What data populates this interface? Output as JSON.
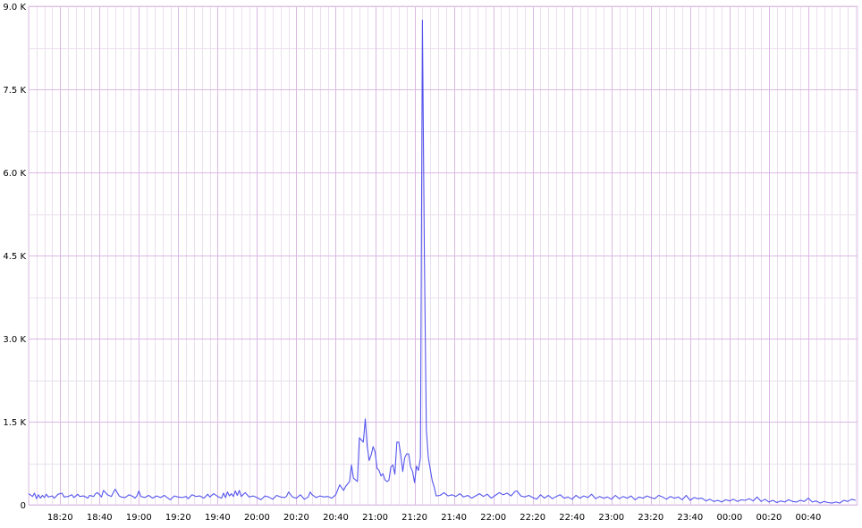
{
  "chart_data": {
    "type": "line",
    "title": "",
    "xlabel": "",
    "ylabel": "",
    "grid": true,
    "ylim": [
      0,
      9000
    ],
    "y_ticks": [
      {
        "value": 0,
        "label": "0"
      },
      {
        "value": 1500,
        "label": "1.5 K"
      },
      {
        "value": 3000,
        "label": "3.0 K"
      },
      {
        "value": 4500,
        "label": "4.5 K"
      },
      {
        "value": 6000,
        "label": "6.0 K"
      },
      {
        "value": 7500,
        "label": "7.5 K"
      },
      {
        "value": 9000,
        "label": "9.0 K"
      }
    ],
    "x_range_minutes": [
      1084,
      1505
    ],
    "x_ticks": [
      {
        "value": 1100,
        "label": "18:20"
      },
      {
        "value": 1120,
        "label": "18:40"
      },
      {
        "value": 1140,
        "label": "19:00"
      },
      {
        "value": 1160,
        "label": "19:20"
      },
      {
        "value": 1180,
        "label": "19:40"
      },
      {
        "value": 1200,
        "label": "20:00"
      },
      {
        "value": 1220,
        "label": "20:20"
      },
      {
        "value": 1240,
        "label": "20:40"
      },
      {
        "value": 1260,
        "label": "21:00"
      },
      {
        "value": 1280,
        "label": "21:20"
      },
      {
        "value": 1300,
        "label": "21:40"
      },
      {
        "value": 1320,
        "label": "22:00"
      },
      {
        "value": 1340,
        "label": "22:20"
      },
      {
        "value": 1360,
        "label": "22:40"
      },
      {
        "value": 1380,
        "label": "23:00"
      },
      {
        "value": 1400,
        "label": "23:20"
      },
      {
        "value": 1420,
        "label": "23:40"
      },
      {
        "value": 1440,
        "label": "00:00"
      },
      {
        "value": 1460,
        "label": "00:20"
      },
      {
        "value": 1480,
        "label": "00:40"
      }
    ],
    "series": [
      {
        "color": "#5555ee",
        "points": [
          [
            1084,
            200
          ],
          [
            1086,
            150
          ],
          [
            1087,
            210
          ],
          [
            1088,
            110
          ],
          [
            1089,
            180
          ],
          [
            1090,
            120
          ],
          [
            1091,
            170
          ],
          [
            1092,
            130
          ],
          [
            1093,
            190
          ],
          [
            1094,
            140
          ],
          [
            1096,
            160
          ],
          [
            1097,
            120
          ],
          [
            1099,
            190
          ],
          [
            1101,
            210
          ],
          [
            1102,
            140
          ],
          [
            1104,
            150
          ],
          [
            1106,
            180
          ],
          [
            1107,
            130
          ],
          [
            1109,
            190
          ],
          [
            1110,
            150
          ],
          [
            1112,
            160
          ],
          [
            1114,
            120
          ],
          [
            1115,
            170
          ],
          [
            1117,
            150
          ],
          [
            1118,
            200
          ],
          [
            1119,
            220
          ],
          [
            1121,
            140
          ],
          [
            1122,
            260
          ],
          [
            1124,
            180
          ],
          [
            1126,
            150
          ],
          [
            1127,
            220
          ],
          [
            1128,
            280
          ],
          [
            1130,
            160
          ],
          [
            1131,
            140
          ],
          [
            1133,
            130
          ],
          [
            1135,
            180
          ],
          [
            1137,
            150
          ],
          [
            1138,
            120
          ],
          [
            1139,
            160
          ],
          [
            1140,
            250
          ],
          [
            1141,
            150
          ],
          [
            1143,
            130
          ],
          [
            1145,
            170
          ],
          [
            1147,
            120
          ],
          [
            1149,
            160
          ],
          [
            1151,
            130
          ],
          [
            1153,
            170
          ],
          [
            1154,
            140
          ],
          [
            1156,
            90
          ],
          [
            1158,
            160
          ],
          [
            1160,
            140
          ],
          [
            1162,
            130
          ],
          [
            1164,
            150
          ],
          [
            1165,
            110
          ],
          [
            1167,
            180
          ],
          [
            1169,
            150
          ],
          [
            1171,
            160
          ],
          [
            1173,
            120
          ],
          [
            1175,
            190
          ],
          [
            1176,
            140
          ],
          [
            1178,
            200
          ],
          [
            1180,
            150
          ],
          [
            1182,
            120
          ],
          [
            1183,
            210
          ],
          [
            1184,
            130
          ],
          [
            1185,
            230
          ],
          [
            1186,
            160
          ],
          [
            1187,
            200
          ],
          [
            1188,
            150
          ],
          [
            1189,
            250
          ],
          [
            1190,
            170
          ],
          [
            1191,
            260
          ],
          [
            1192,
            150
          ],
          [
            1194,
            220
          ],
          [
            1196,
            140
          ],
          [
            1198,
            160
          ],
          [
            1200,
            130
          ],
          [
            1202,
            90
          ],
          [
            1204,
            160
          ],
          [
            1206,
            140
          ],
          [
            1208,
            100
          ],
          [
            1210,
            170
          ],
          [
            1212,
            140
          ],
          [
            1214,
            130
          ],
          [
            1215,
            150
          ],
          [
            1216,
            230
          ],
          [
            1218,
            140
          ],
          [
            1220,
            120
          ],
          [
            1222,
            180
          ],
          [
            1224,
            100
          ],
          [
            1226,
            140
          ],
          [
            1227,
            230
          ],
          [
            1228,
            180
          ],
          [
            1230,
            130
          ],
          [
            1232,
            160
          ],
          [
            1234,
            140
          ],
          [
            1236,
            150
          ],
          [
            1238,
            120
          ],
          [
            1240,
            180
          ],
          [
            1242,
            360
          ],
          [
            1244,
            260
          ],
          [
            1245,
            330
          ],
          [
            1247,
            420
          ],
          [
            1248,
            720
          ],
          [
            1249,
            480
          ],
          [
            1251,
            420
          ],
          [
            1252,
            1210
          ],
          [
            1254,
            1130
          ],
          [
            1255,
            1550
          ],
          [
            1256,
            1050
          ],
          [
            1257,
            800
          ],
          [
            1258,
            900
          ],
          [
            1259,
            1050
          ],
          [
            1260,
            950
          ],
          [
            1261,
            660
          ],
          [
            1262,
            620
          ],
          [
            1263,
            520
          ],
          [
            1264,
            560
          ],
          [
            1265,
            450
          ],
          [
            1266,
            420
          ],
          [
            1267,
            440
          ],
          [
            1268,
            680
          ],
          [
            1269,
            720
          ],
          [
            1270,
            550
          ],
          [
            1271,
            1130
          ],
          [
            1272,
            1130
          ],
          [
            1273,
            900
          ],
          [
            1274,
            600
          ],
          [
            1275,
            850
          ],
          [
            1276,
            920
          ],
          [
            1277,
            920
          ],
          [
            1278,
            680
          ],
          [
            1279,
            600
          ],
          [
            1280,
            400
          ],
          [
            1281,
            700
          ],
          [
            1282,
            620
          ],
          [
            1283,
            850
          ],
          [
            1284,
            8750
          ],
          [
            1285,
            4500
          ],
          [
            1286,
            1350
          ],
          [
            1287,
            850
          ],
          [
            1288,
            640
          ],
          [
            1289,
            430
          ],
          [
            1290,
            320
          ],
          [
            1291,
            160
          ],
          [
            1293,
            170
          ],
          [
            1295,
            220
          ],
          [
            1297,
            160
          ],
          [
            1299,
            180
          ],
          [
            1301,
            150
          ],
          [
            1303,
            200
          ],
          [
            1305,
            140
          ],
          [
            1307,
            170
          ],
          [
            1309,
            120
          ],
          [
            1311,
            160
          ],
          [
            1313,
            200
          ],
          [
            1315,
            150
          ],
          [
            1317,
            190
          ],
          [
            1319,
            120
          ],
          [
            1321,
            170
          ],
          [
            1323,
            220
          ],
          [
            1325,
            180
          ],
          [
            1327,
            210
          ],
          [
            1329,
            160
          ],
          [
            1331,
            240
          ],
          [
            1332,
            250
          ],
          [
            1334,
            160
          ],
          [
            1336,
            140
          ],
          [
            1338,
            170
          ],
          [
            1340,
            130
          ],
          [
            1342,
            100
          ],
          [
            1344,
            180
          ],
          [
            1346,
            120
          ],
          [
            1348,
            170
          ],
          [
            1350,
            110
          ],
          [
            1352,
            150
          ],
          [
            1354,
            180
          ],
          [
            1356,
            120
          ],
          [
            1358,
            140
          ],
          [
            1360,
            100
          ],
          [
            1362,
            170
          ],
          [
            1364,
            120
          ],
          [
            1366,
            160
          ],
          [
            1368,
            130
          ],
          [
            1370,
            190
          ],
          [
            1372,
            110
          ],
          [
            1374,
            150
          ],
          [
            1376,
            120
          ],
          [
            1378,
            140
          ],
          [
            1380,
            100
          ],
          [
            1382,
            170
          ],
          [
            1384,
            110
          ],
          [
            1386,
            150
          ],
          [
            1388,
            120
          ],
          [
            1390,
            160
          ],
          [
            1392,
            90
          ],
          [
            1394,
            140
          ],
          [
            1396,
            120
          ],
          [
            1398,
            160
          ],
          [
            1400,
            130
          ],
          [
            1402,
            110
          ],
          [
            1404,
            170
          ],
          [
            1406,
            140
          ],
          [
            1408,
            100
          ],
          [
            1410,
            150
          ],
          [
            1412,
            120
          ],
          [
            1414,
            140
          ],
          [
            1416,
            90
          ],
          [
            1418,
            170
          ],
          [
            1420,
            80
          ],
          [
            1422,
            130
          ],
          [
            1424,
            110
          ],
          [
            1426,
            120
          ],
          [
            1428,
            70
          ],
          [
            1430,
            100
          ],
          [
            1432,
            60
          ],
          [
            1434,
            80
          ],
          [
            1436,
            50
          ],
          [
            1438,
            90
          ],
          [
            1440,
            70
          ],
          [
            1442,
            100
          ],
          [
            1444,
            60
          ],
          [
            1446,
            90
          ],
          [
            1448,
            80
          ],
          [
            1450,
            110
          ],
          [
            1452,
            70
          ],
          [
            1454,
            140
          ],
          [
            1456,
            60
          ],
          [
            1458,
            100
          ],
          [
            1460,
            50
          ],
          [
            1462,
            80
          ],
          [
            1464,
            40
          ],
          [
            1466,
            70
          ],
          [
            1468,
            50
          ],
          [
            1470,
            90
          ],
          [
            1472,
            60
          ],
          [
            1474,
            50
          ],
          [
            1476,
            80
          ],
          [
            1478,
            60
          ],
          [
            1480,
            120
          ],
          [
            1482,
            50
          ],
          [
            1484,
            70
          ],
          [
            1486,
            30
          ],
          [
            1488,
            60
          ],
          [
            1490,
            40
          ],
          [
            1492,
            30
          ],
          [
            1494,
            50
          ],
          [
            1496,
            30
          ],
          [
            1498,
            80
          ],
          [
            1500,
            60
          ],
          [
            1502,
            100
          ],
          [
            1504,
            80
          ]
        ]
      }
    ]
  }
}
